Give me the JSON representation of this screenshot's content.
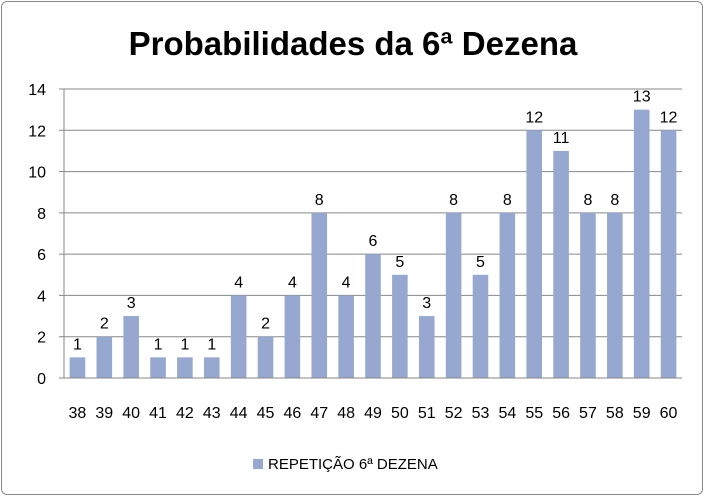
{
  "chart_data": {
    "type": "bar",
    "title": "Probabilidades da 6ª Dezena",
    "categories": [
      "38",
      "39",
      "40",
      "41",
      "42",
      "43",
      "44",
      "45",
      "46",
      "47",
      "48",
      "49",
      "50",
      "51",
      "52",
      "53",
      "54",
      "55",
      "56",
      "57",
      "58",
      "59",
      "60"
    ],
    "series": [
      {
        "name": "REPETIÇÃO 6ª DEZENA",
        "values": [
          1,
          2,
          3,
          1,
          1,
          1,
          4,
          2,
          4,
          8,
          4,
          6,
          5,
          3,
          8,
          5,
          8,
          12,
          11,
          8,
          8,
          13,
          12
        ],
        "color": "#96a8d0"
      }
    ],
    "ylim": [
      0,
      14
    ],
    "yticks": [
      0,
      2,
      4,
      6,
      8,
      10,
      12,
      14
    ],
    "grid": true,
    "legend_position": "bottom",
    "data_labels": true
  }
}
